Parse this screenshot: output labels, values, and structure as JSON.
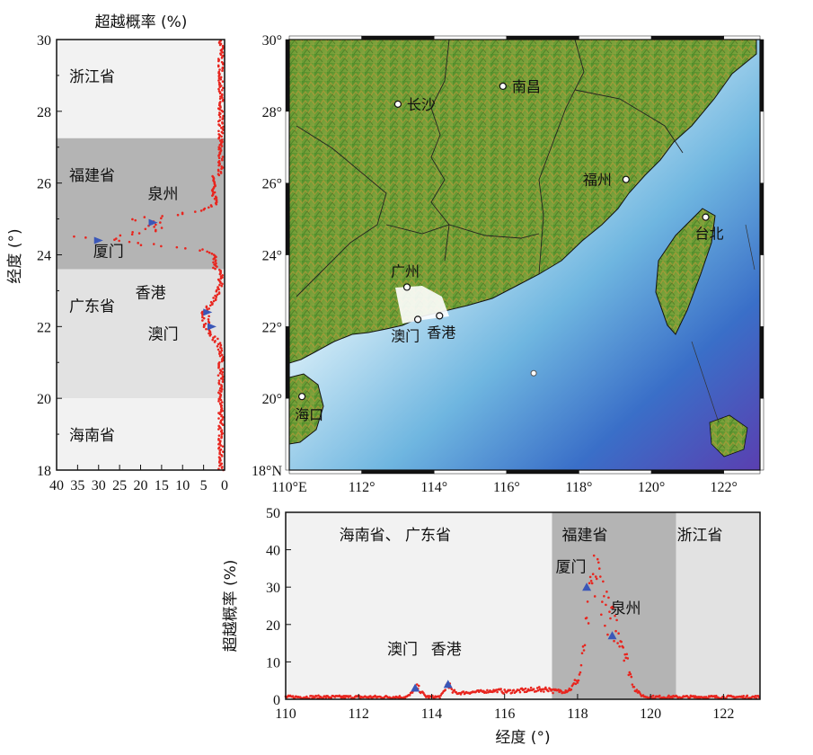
{
  "chart_data": [
    {
      "type": "scatter",
      "title": "超越概率 (%)",
      "ylabel": "经度 (°)",
      "xlim": [
        40,
        0
      ],
      "ylim": [
        18,
        30
      ],
      "x_ticks": [
        "40",
        "35",
        "30",
        "25",
        "20",
        "15",
        "10",
        "5",
        "0"
      ],
      "y_ticks": [
        "18",
        "20",
        "22",
        "24",
        "26",
        "28",
        "30"
      ],
      "regions": [
        {
          "name": "浙江省",
          "from": 27.25,
          "to": 30,
          "color": "#f2f2f2"
        },
        {
          "name": "福建省",
          "from": 23.6,
          "to": 27.25,
          "color": "#b4b4b4"
        },
        {
          "name": "广东省",
          "from": 20.0,
          "to": 23.6,
          "color": "#e2e2e2"
        },
        {
          "name": "海南省",
          "from": 18,
          "to": 20.0,
          "color": "#f2f2f2"
        }
      ],
      "markers": [
        {
          "name": "泉州",
          "prob": 17,
          "lat": 24.9
        },
        {
          "name": "厦门",
          "prob": 30,
          "lat": 24.4
        },
        {
          "name": "香港",
          "prob": 4,
          "lat": 22.4
        },
        {
          "name": "澳门",
          "prob": 3,
          "lat": 22.0
        }
      ],
      "point_color": "#e8251e",
      "marker_color": "#3a57b8"
    },
    {
      "type": "map",
      "x_ticks": [
        "110°E",
        "112°",
        "114°",
        "116°",
        "118°",
        "120°",
        "122°"
      ],
      "y_ticks": [
        "18°N",
        "20°",
        "22°",
        "24°",
        "26°",
        "28°",
        "30°"
      ],
      "xlim": [
        110,
        123
      ],
      "ylim": [
        18,
        30
      ],
      "cities": [
        {
          "name": "长沙",
          "lon": 113.0,
          "lat": 28.2
        },
        {
          "name": "南昌",
          "lon": 115.9,
          "lat": 28.7
        },
        {
          "name": "福州",
          "lon": 119.3,
          "lat": 26.1
        },
        {
          "name": "台北",
          "lon": 121.5,
          "lat": 25.05
        },
        {
          "name": "广州",
          "lon": 113.25,
          "lat": 23.1
        },
        {
          "name": "澳门",
          "lon": 113.55,
          "lat": 22.2
        },
        {
          "name": "香港",
          "lon": 114.15,
          "lat": 22.3
        },
        {
          "name": "海口",
          "lon": 110.35,
          "lat": 20.05
        }
      ]
    },
    {
      "type": "scatter",
      "xlabel": "经度 (°)",
      "ylabel": "超越概率 (%)",
      "xlim": [
        110,
        123
      ],
      "ylim": [
        0,
        50
      ],
      "x_ticks": [
        "110",
        "112",
        "114",
        "116",
        "118",
        "120",
        "122"
      ],
      "y_ticks": [
        "0",
        "10",
        "20",
        "30",
        "40",
        "50"
      ],
      "regions": [
        {
          "name": "海南省、 广东省",
          "from": 110,
          "to": 117.3,
          "color": "#f2f2f2"
        },
        {
          "name": "福建省",
          "from": 117.3,
          "to": 120.7,
          "color": "#b4b4b4"
        },
        {
          "name": "浙江省",
          "from": 120.7,
          "to": 123,
          "color": "#e2e2e2"
        }
      ],
      "markers": [
        {
          "name": "澳门",
          "lon": 113.55,
          "prob": 3
        },
        {
          "name": "香港",
          "lon": 114.45,
          "prob": 4
        },
        {
          "name": "厦门",
          "lon": 118.25,
          "prob": 30
        },
        {
          "name": "泉州",
          "lon": 118.95,
          "prob": 17
        }
      ],
      "point_color": "#e8251e",
      "marker_color": "#3a57b8"
    }
  ]
}
